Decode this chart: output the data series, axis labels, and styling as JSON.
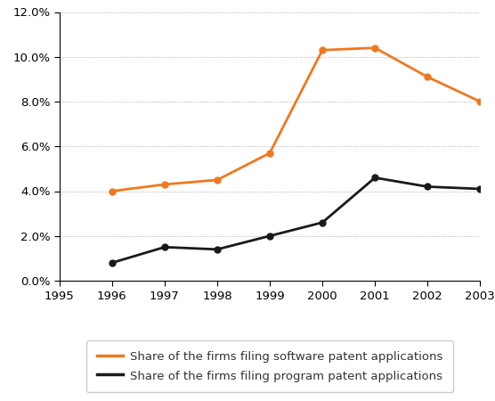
{
  "years": [
    1996,
    1997,
    1998,
    1999,
    2000,
    2001,
    2002,
    2003
  ],
  "software_values": [
    0.04,
    0.043,
    0.045,
    0.057,
    0.103,
    0.104,
    0.091,
    0.08
  ],
  "program_values": [
    0.008,
    0.015,
    0.014,
    0.02,
    0.026,
    0.046,
    0.042,
    0.041
  ],
  "software_color": "#F07820",
  "program_color": "#1A1A1A",
  "xlim": [
    1995,
    2003
  ],
  "ylim": [
    0.0,
    0.12
  ],
  "yticks": [
    0.0,
    0.02,
    0.04,
    0.06,
    0.08,
    0.1,
    0.12
  ],
  "xticks": [
    1995,
    1996,
    1997,
    1998,
    1999,
    2000,
    2001,
    2002,
    2003
  ],
  "grid_color": "#AAAAAA",
  "legend_software": "Share of the firms filing software patent applications",
  "legend_program": "Share of the firms filing program patent applications",
  "marker": "o",
  "marker_size": 5,
  "linewidth": 2.0,
  "background_color": "#FFFFFF",
  "spine_color": "#000000",
  "tick_label_size": 9.5,
  "legend_fontsize": 9.5
}
